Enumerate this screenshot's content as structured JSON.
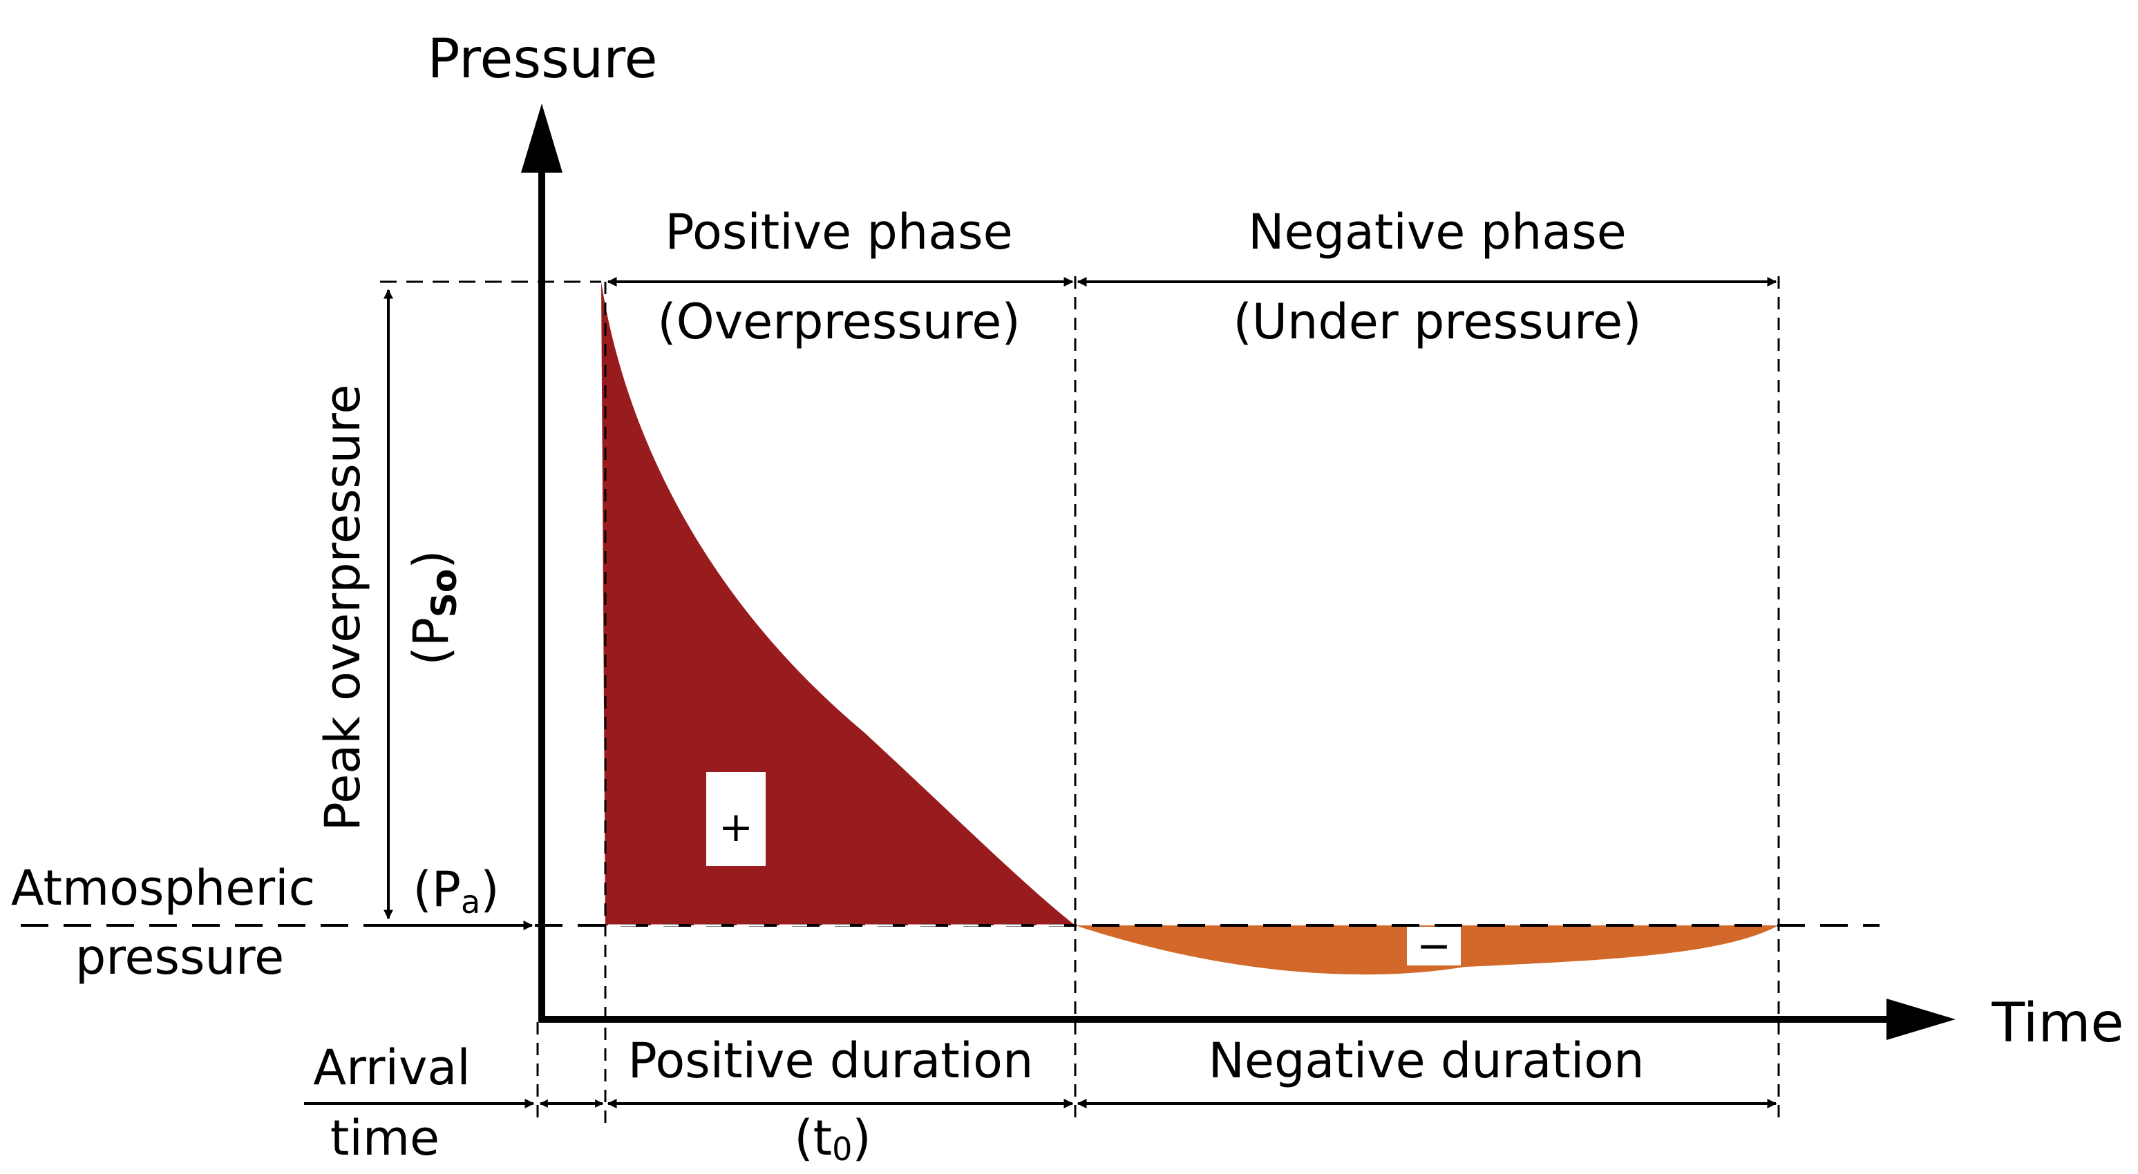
{
  "axes": {
    "y_label": "Pressure",
    "x_label": "Time"
  },
  "phases": {
    "positive": {
      "title": "Positive phase",
      "subtitle": "(Overpressure)"
    },
    "negative": {
      "title": "Negative phase",
      "subtitle": "(Under pressure)"
    }
  },
  "peak": {
    "label": "Peak overpressure",
    "symbol_open": "(P",
    "symbol_sub": "So",
    "symbol_close": ")"
  },
  "atmospheric": {
    "line1": "Atmospheric",
    "line2": "pressure",
    "symbol_open": "(P",
    "symbol_sub": "a",
    "symbol_close": ")"
  },
  "durations": {
    "arrival_line1": "Arrival",
    "arrival_line2": "time",
    "positive": "Positive duration",
    "t0_open": "(t",
    "t0_sub": "0",
    "t0_close": ")",
    "negative": "Negative duration"
  },
  "signs": {
    "plus": "+",
    "minus": "−"
  },
  "colors": {
    "positive_fill": "#981b1e",
    "negative_fill": "#d2692a",
    "line": "#000000"
  }
}
